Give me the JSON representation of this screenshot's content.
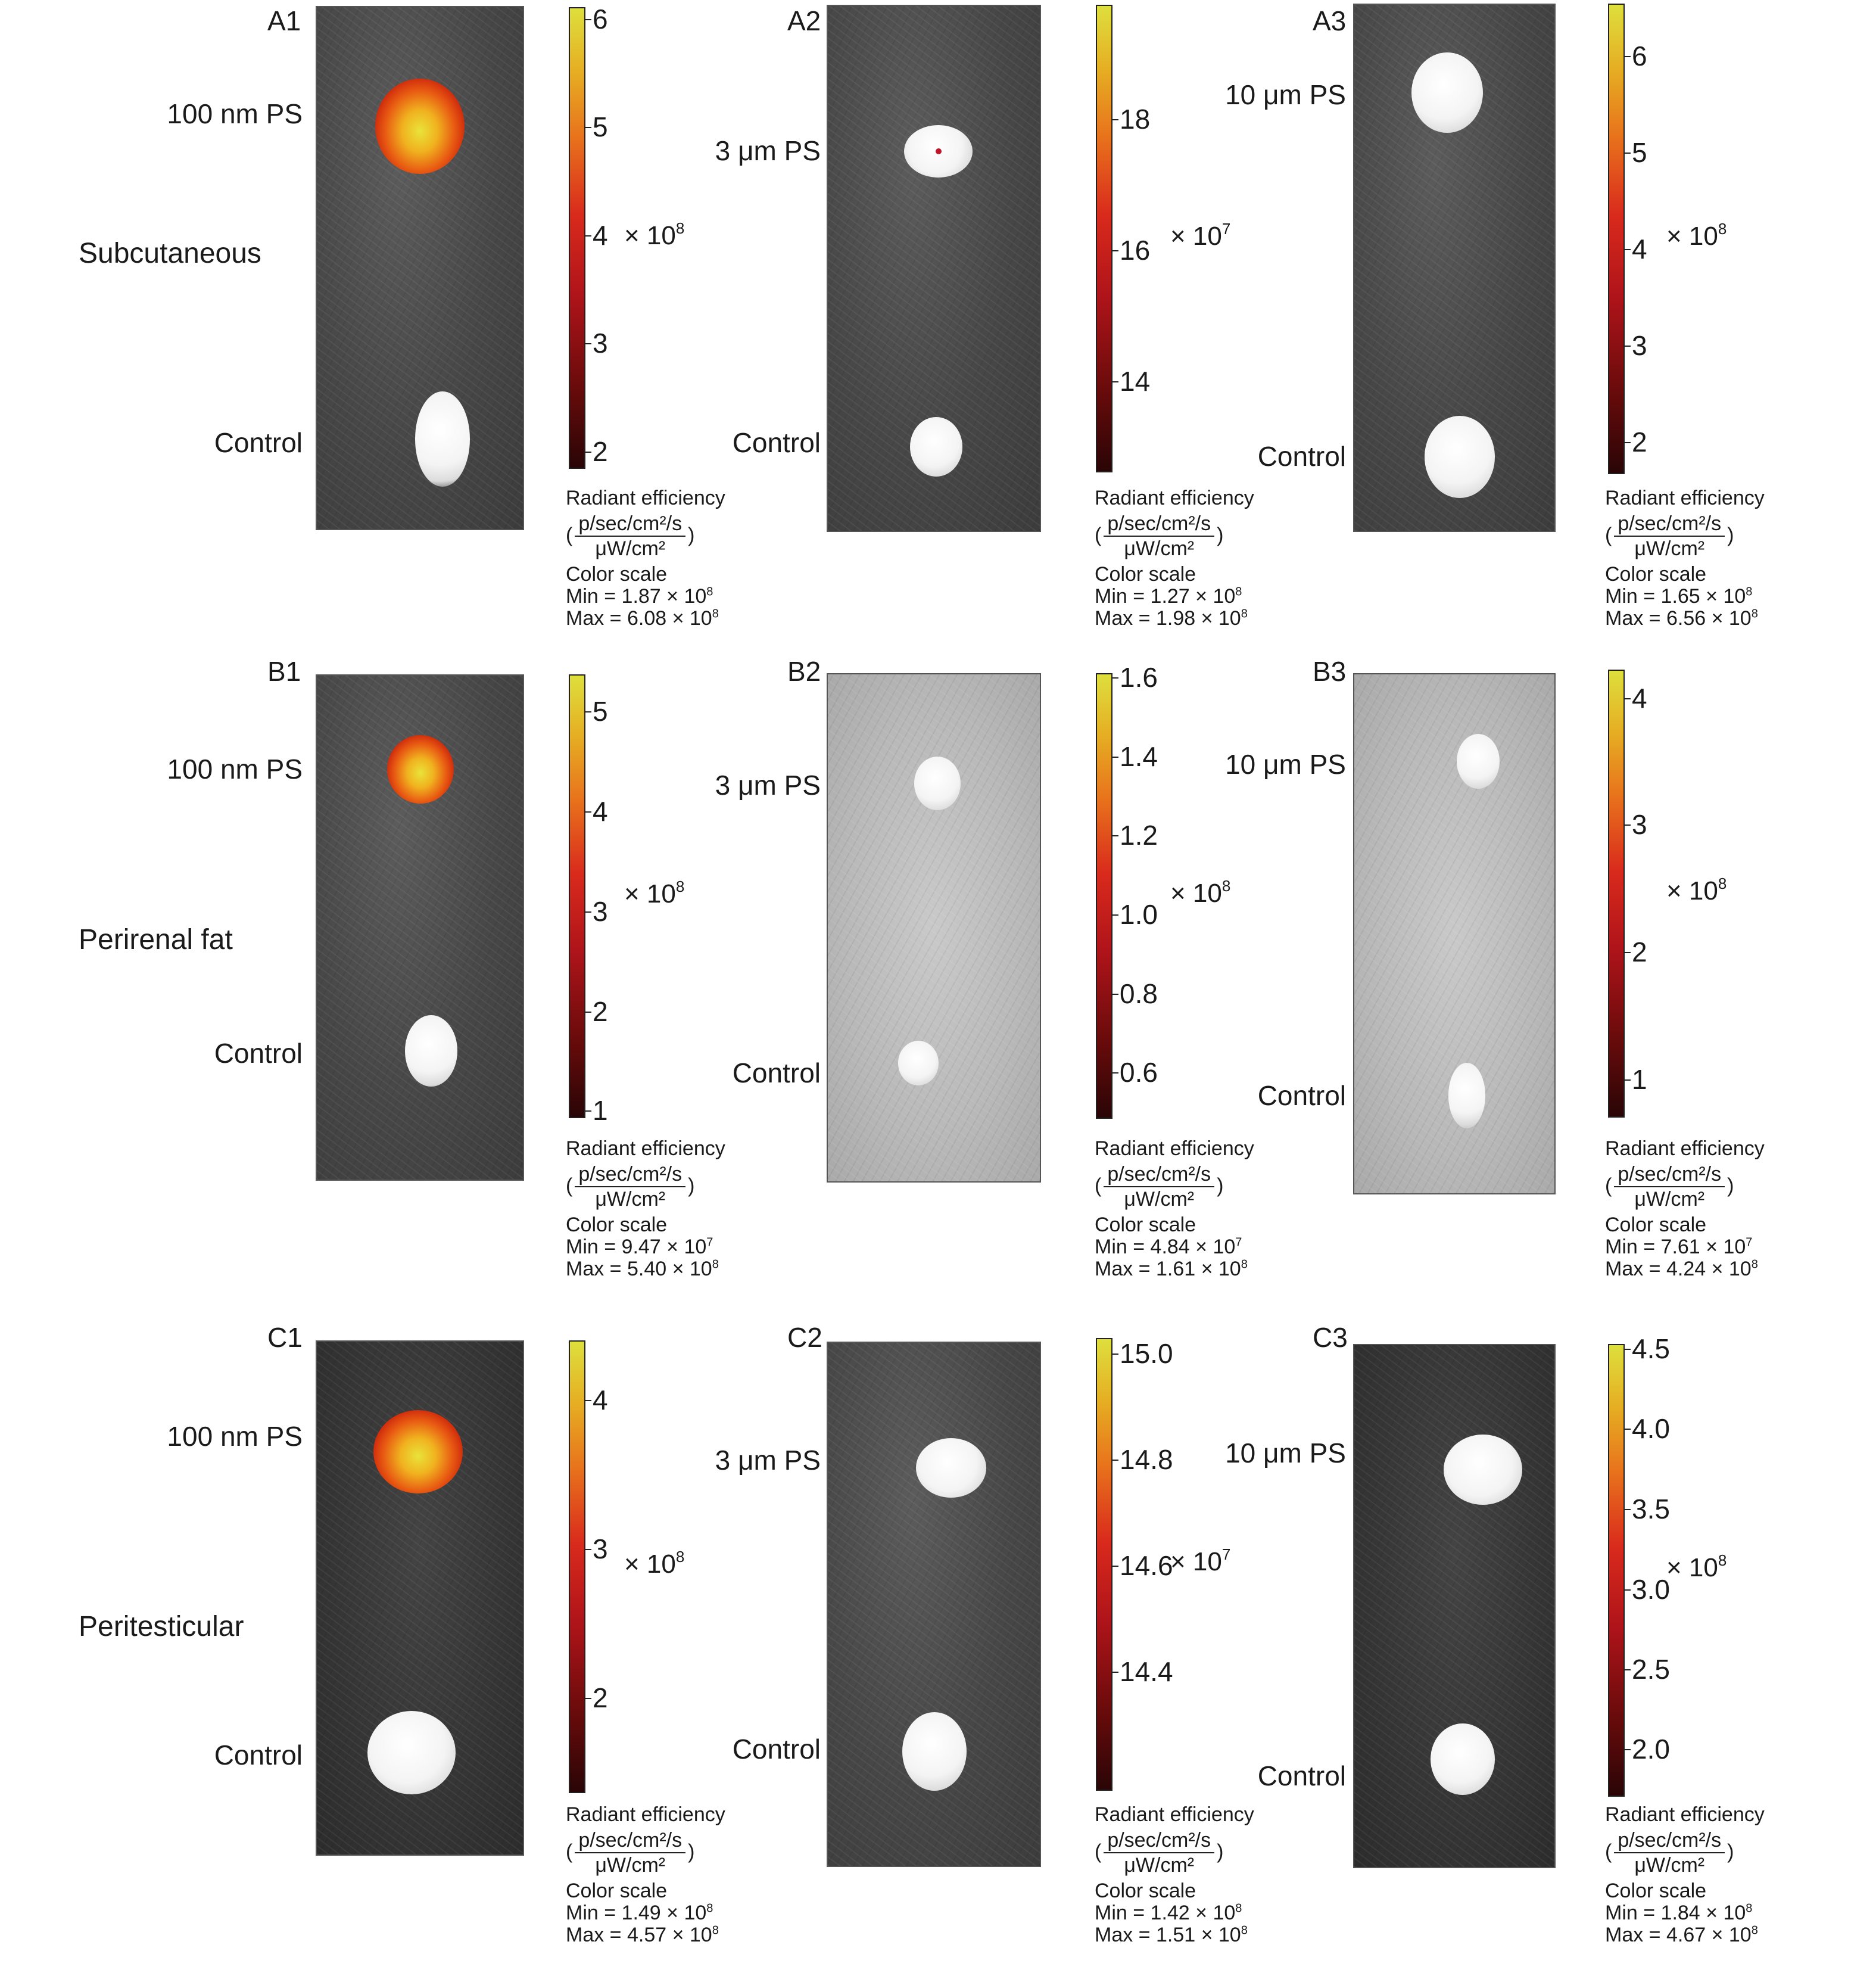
{
  "rows": [
    {
      "label": "Subcutaneous"
    },
    {
      "label": "Perirenal fat"
    },
    {
      "label": "Peritesticular"
    }
  ],
  "panels": [
    {
      "id": "A1",
      "sample": "100 nm PS",
      "control": "Control",
      "ticks": [
        "6",
        "5",
        "4",
        "3",
        "2"
      ],
      "exponent_base": "× 10",
      "exponent_power": "8",
      "legend": {
        "title": "Radiant efficiency",
        "num": "p/sec/cm²/s",
        "den": "μW/cm²",
        "scale": "Color scale",
        "min": "Min = 1.87 × 10",
        "min_pow": "8",
        "max": "Max = 6.08 × 10",
        "max_pow": "8"
      }
    },
    {
      "id": "A2",
      "sample": "3 μm PS",
      "control": "Control",
      "ticks": [
        "18",
        "16",
        "14"
      ],
      "exponent_base": "× 10",
      "exponent_power": "7",
      "legend": {
        "title": "Radiant efficiency",
        "num": "p/sec/cm²/s",
        "den": "μW/cm²",
        "scale": "Color scale",
        "min": "Min = 1.27 × 10",
        "min_pow": "8",
        "max": "Max = 1.98 × 10",
        "max_pow": "8"
      }
    },
    {
      "id": "A3",
      "sample": "10 μm PS",
      "control": "Control",
      "ticks": [
        "6",
        "5",
        "4",
        "3",
        "2"
      ],
      "exponent_base": "× 10",
      "exponent_power": "8",
      "legend": {
        "title": "Radiant efficiency",
        "num": "p/sec/cm²/s",
        "den": "μW/cm²",
        "scale": "Color scale",
        "min": "Min = 1.65 × 10",
        "min_pow": "8",
        "max": "Max = 6.56 × 10",
        "max_pow": "8"
      }
    },
    {
      "id": "B1",
      "sample": "100 nm PS",
      "control": "Control",
      "ticks": [
        "5",
        "4",
        "3",
        "2",
        "1"
      ],
      "exponent_base": "× 10",
      "exponent_power": "8",
      "legend": {
        "title": "Radiant efficiency",
        "num": "p/sec/cm²/s",
        "den": "μW/cm²",
        "scale": "Color scale",
        "min": "Min = 9.47 × 10",
        "min_pow": "7",
        "max": "Max = 5.40 × 10",
        "max_pow": "8"
      }
    },
    {
      "id": "B2",
      "sample": "3 μm PS",
      "control": "Control",
      "ticks": [
        "1.6",
        "1.4",
        "1.2",
        "1.0",
        "0.8",
        "0.6"
      ],
      "exponent_base": "× 10",
      "exponent_power": "8",
      "legend": {
        "title": "Radiant efficiency",
        "num": "p/sec/cm²/s",
        "den": "μW/cm²",
        "scale": "Color scale",
        "min": "Min = 4.84 × 10",
        "min_pow": "7",
        "max": "Max = 1.61 × 10",
        "max_pow": "8"
      }
    },
    {
      "id": "B3",
      "sample": "10 μm PS",
      "control": "Control",
      "ticks": [
        "4",
        "3",
        "2",
        "1"
      ],
      "exponent_base": "× 10",
      "exponent_power": "8",
      "legend": {
        "title": "Radiant efficiency",
        "num": "p/sec/cm²/s",
        "den": "μW/cm²",
        "scale": "Color scale",
        "min": "Min = 7.61 × 10",
        "min_pow": "7",
        "max": "Max = 4.24 × 10",
        "max_pow": "8"
      }
    },
    {
      "id": "C1",
      "sample": "100 nm PS",
      "control": "Control",
      "ticks": [
        "4",
        "3",
        "2"
      ],
      "exponent_base": "× 10",
      "exponent_power": "8",
      "legend": {
        "title": "Radiant efficiency",
        "num": "p/sec/cm²/s",
        "den": "μW/cm²",
        "scale": "Color scale",
        "min": "Min = 1.49 × 10",
        "min_pow": "8",
        "max": "Max = 4.57 × 10",
        "max_pow": "8"
      }
    },
    {
      "id": "C2",
      "sample": "3 μm PS",
      "control": "Control",
      "ticks": [
        "15.0",
        "14.8",
        "14.6",
        "14.4"
      ],
      "exponent_base": "× 10",
      "exponent_power": "7",
      "legend": {
        "title": "Radiant efficiency",
        "num": "p/sec/cm²/s",
        "den": "μW/cm²",
        "scale": "Color scale",
        "min": "Min = 1.42 × 10",
        "min_pow": "8",
        "max": "Max = 1.51 × 10",
        "max_pow": "8"
      }
    },
    {
      "id": "C3",
      "sample": "10 μm PS",
      "control": "Control",
      "ticks": [
        "4.5",
        "4.0",
        "3.5",
        "3.0",
        "2.5",
        "2.0"
      ],
      "exponent_base": "× 10",
      "exponent_power": "8",
      "legend": {
        "title": "Radiant efficiency",
        "num": "p/sec/cm²/s",
        "den": "μW/cm²",
        "scale": "Color scale",
        "min": "Min = 1.84 × 10",
        "min_pow": "8",
        "max": "Max = 4.67 × 10",
        "max_pow": "8"
      }
    }
  ]
}
